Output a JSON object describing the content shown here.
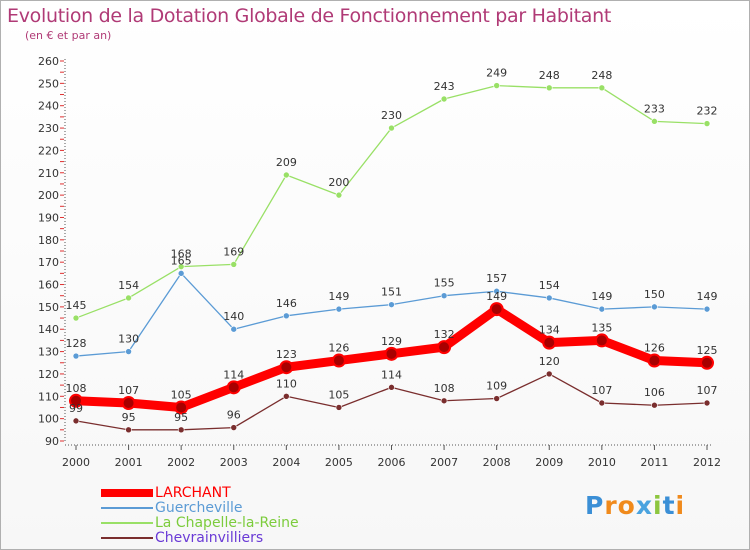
{
  "header": {
    "title": "Evolution de la Dotation Globale de Fonctionnement par Habitant",
    "subtitle": "(en € et par an)"
  },
  "logo": {
    "letters": [
      "P",
      "r",
      "o",
      "x",
      "i",
      "t",
      "i"
    ],
    "colors": [
      "#3b8fd6",
      "#f08a1c",
      "#f08a1c",
      "#4aa3df",
      "#8dc63f",
      "#3b8fd6",
      "#f08a1c"
    ]
  },
  "chart_data": {
    "type": "line",
    "title": "Evolution de la Dotation Globale de Fonctionnement par Habitant",
    "subtitle": "(en € et par an)",
    "x": [
      2000,
      2001,
      2002,
      2003,
      2004,
      2005,
      2006,
      2007,
      2008,
      2009,
      2010,
      2011,
      2012
    ],
    "ylim": [
      90,
      260
    ],
    "yticks": [
      90,
      100,
      110,
      120,
      130,
      140,
      150,
      160,
      170,
      180,
      190,
      200,
      210,
      220,
      230,
      240,
      250,
      260
    ],
    "grid": false,
    "legend_position": "bottom-left",
    "series": [
      {
        "name": "LARCHANT",
        "color": "#ff0000",
        "values": [
          108,
          107,
          105,
          114,
          123,
          126,
          129,
          132,
          149,
          134,
          135,
          126,
          125
        ]
      },
      {
        "name": "Guercheville",
        "color": "#5b9bd5",
        "values": [
          128,
          130,
          165,
          140,
          146,
          149,
          151,
          155,
          157,
          154,
          149,
          150,
          149
        ]
      },
      {
        "name": "La Chapelle-la-Reine",
        "color": "#99e066",
        "values": [
          145,
          154,
          168,
          169,
          209,
          200,
          230,
          243,
          249,
          248,
          248,
          233,
          232
        ]
      },
      {
        "name": "Chevrainvilliers",
        "color": "#7a2e2e",
        "values": [
          99,
          95,
          95,
          96,
          110,
          105,
          114,
          108,
          109,
          120,
          107,
          106,
          107
        ]
      }
    ]
  }
}
